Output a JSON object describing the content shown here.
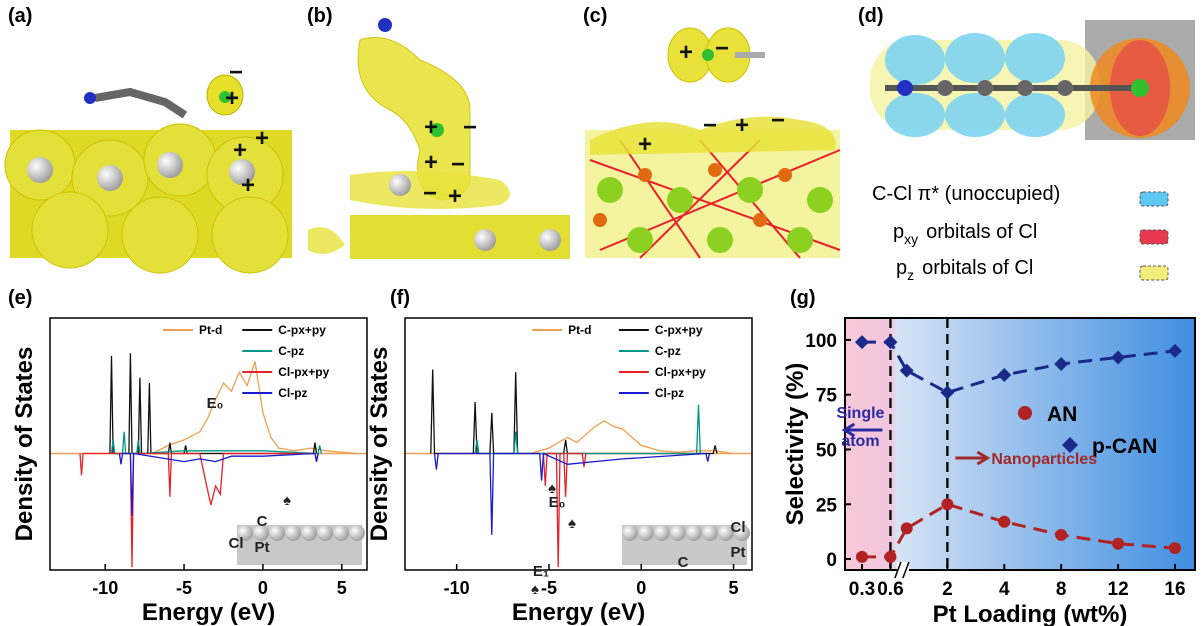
{
  "panels": {
    "a": {
      "label": "(a)",
      "signs": [
        "−",
        "+",
        "+",
        "+",
        "+"
      ]
    },
    "b": {
      "label": "(b)",
      "signs": [
        "+",
        "−",
        "+",
        "−",
        "−",
        "+"
      ]
    },
    "c": {
      "label": "(c)",
      "signs": [
        "+",
        "−",
        "+",
        "−",
        "+",
        "−"
      ]
    },
    "d": {
      "label": "(d)",
      "legend": [
        {
          "text": "C-Cl π* (unoccupied)",
          "color": "#5fc8f0"
        },
        {
          "main": "p",
          "sub": "xy",
          "rest": "orbitals  of Cl",
          "color": "#e8384f"
        },
        {
          "main": "p",
          "sub": "z",
          "rest": "orbitals  of Cl",
          "color": "#f2ec7a"
        }
      ]
    }
  },
  "chart_data": [
    {
      "type": "dos",
      "label": "(e)",
      "xlabel": "Energy (eV)",
      "ylabel": "Density of States",
      "xlim": [
        -13.5,
        6.6
      ],
      "ylim": [
        -4.3,
        5
      ],
      "xticks": [
        -10,
        -5,
        0,
        5
      ],
      "series": [
        {
          "name": "Pt-d",
          "color": "#f0a050",
          "x": [
            -7,
            -6,
            -5,
            -4,
            -3.5,
            -3,
            -2.5,
            -2,
            -1.5,
            -1,
            -0.5,
            0,
            0.5,
            1,
            2,
            3,
            4,
            5,
            6
          ],
          "values": [
            0,
            0.3,
            0.5,
            0.8,
            1.3,
            2.0,
            2.6,
            2.3,
            3.0,
            2.5,
            3.4,
            1.5,
            0.6,
            0.2,
            0.1,
            0.2,
            0.1,
            0.05,
            0
          ]
        },
        {
          "name": "C-px+py",
          "color": "#111111",
          "x": [
            -9.7,
            -9.6,
            -9.5,
            -8.5,
            -8.4,
            -8.3,
            -7.9,
            -7.8,
            -7.7,
            -7.3,
            -7.2,
            -7.1,
            -6,
            -5.9,
            -5.8,
            -5,
            -4.9,
            -4.8,
            3.2,
            3.3,
            3.4
          ],
          "values": [
            0,
            3.6,
            0,
            0,
            3.7,
            0,
            0,
            2.8,
            0,
            0,
            2.6,
            0,
            0,
            0.4,
            0,
            0,
            0.3,
            0,
            0,
            0.4,
            0
          ]
        },
        {
          "name": "C-pz",
          "color": "#009688",
          "x": [
            -9.6,
            -9.5,
            -9.4,
            -8.9,
            -8.8,
            -8.7,
            -8,
            -7.9,
            -7.8,
            -5,
            -3,
            0,
            3.5,
            3.6,
            3.7
          ],
          "values": [
            0,
            0.5,
            0,
            0,
            0.8,
            0,
            0,
            0.5,
            0,
            0.1,
            0.1,
            0.1,
            0,
            0.3,
            0
          ]
        },
        {
          "name": "Cl-px+py",
          "color": "#e8202a",
          "x": [
            -11.6,
            -11.5,
            -11.4,
            -8.4,
            -8.3,
            -8.2,
            -6,
            -5.9,
            -5.8,
            -4,
            -3.6,
            -3.3,
            -3,
            -2.7,
            -2.5,
            3.3,
            3.4,
            3.5
          ],
          "values": [
            0,
            -0.8,
            0,
            0,
            -4.2,
            0,
            0,
            -1.6,
            0,
            0,
            -1.1,
            -1.9,
            -1.2,
            -1.5,
            0,
            0,
            -0.3,
            0
          ]
        },
        {
          "name": "Cl-pz",
          "color": "#1a1ad0",
          "x": [
            -9.1,
            -9,
            -8.9,
            -8.4,
            -8.3,
            -8.2,
            -5,
            -4,
            -3,
            -2,
            0,
            3.3,
            3.4,
            3.5
          ],
          "values": [
            0,
            -0.4,
            0,
            0,
            -2.3,
            0,
            -0.3,
            -0.2,
            -0.3,
            -0.1,
            -0.1,
            0,
            -0.3,
            0
          ]
        }
      ],
      "annotations": [
        "E₀",
        "♠",
        "C",
        "Cl",
        "Pt"
      ]
    },
    {
      "type": "dos",
      "label": "(f)",
      "xlabel": "Energy (eV)",
      "ylabel": "Density of States",
      "xlim": [
        -12.8,
        6
      ],
      "ylim": [
        -4.3,
        5
      ],
      "xticks": [
        -10,
        -5,
        0,
        5
      ],
      "series": [
        {
          "name": "Pt-d",
          "color": "#f0a050",
          "x": [
            -6,
            -5,
            -4.5,
            -4,
            -3.5,
            -3,
            -2.5,
            -2,
            -1.5,
            -1,
            -0.5,
            0,
            1,
            2,
            3,
            4,
            5
          ],
          "values": [
            0,
            0.2,
            0.4,
            0.6,
            0.4,
            0.7,
            1.0,
            1.2,
            1.0,
            0.9,
            0.6,
            0.3,
            0.1,
            0.05,
            0.1,
            0.1,
            0
          ]
        },
        {
          "name": "C-px+py",
          "color": "#111111",
          "x": [
            -11.4,
            -11.3,
            -11.2,
            -9.1,
            -9,
            -8.9,
            -8.2,
            -8.1,
            -8,
            -6.9,
            -6.8,
            -6.7,
            -4.2,
            -4.1,
            -4,
            3.9,
            4,
            4.1
          ],
          "values": [
            0,
            3.1,
            0,
            0,
            1.9,
            0,
            0,
            1.5,
            0,
            0,
            3.0,
            0,
            0,
            0.5,
            0,
            0,
            0.3,
            0
          ]
        },
        {
          "name": "C-pz",
          "color": "#009688",
          "x": [
            -9,
            -8.9,
            -8.8,
            -6.9,
            -6.8,
            -6.7,
            3,
            3.1,
            3.2
          ],
          "values": [
            0,
            0.5,
            0,
            0,
            0.8,
            0,
            0,
            1.8,
            0
          ]
        },
        {
          "name": "Cl-px+py",
          "color": "#e8202a",
          "x": [
            -5.3,
            -5.2,
            -5.1,
            -4.6,
            -4.5,
            -4.4,
            -4.2,
            -4.1,
            -4,
            -3.2,
            -3.1,
            -3
          ],
          "values": [
            0,
            -1.2,
            0,
            0,
            -4.2,
            0,
            0,
            -1.6,
            0,
            0,
            -0.5,
            0
          ]
        },
        {
          "name": "Cl-pz",
          "color": "#1a1ad0",
          "x": [
            -11.2,
            -11.1,
            -11,
            -8.2,
            -8.1,
            -8,
            -5.5,
            -5.4,
            -5.3,
            -4,
            -1,
            3.5,
            3.6,
            3.7
          ],
          "values": [
            0,
            -0.6,
            0,
            0,
            -3.0,
            0,
            0,
            -1.0,
            0,
            -0.4,
            -0.2,
            0,
            -0.3,
            0
          ]
        }
      ],
      "annotations": [
        "E₀",
        "E₁",
        "♠",
        "♠",
        "♠",
        "Cl",
        "C",
        "Pt"
      ]
    },
    {
      "type": "scatter",
      "label": "(g)",
      "xlabel": "Pt Loading (wt%)",
      "ylabel": "Selectivity (%)",
      "x_scale": "broken",
      "ylim": [
        -5,
        110
      ],
      "yticks": [
        0,
        25,
        50,
        75,
        100
      ],
      "xticks": [
        0.3,
        0.6,
        2,
        4,
        8,
        12,
        16
      ],
      "x": [
        0.3,
        0.6,
        1,
        2,
        4,
        8,
        12,
        16
      ],
      "series": [
        {
          "name": "AN",
          "color": "#b22222",
          "marker": "circle",
          "values": [
            1,
            1,
            14,
            25,
            17,
            11,
            7,
            5
          ]
        },
        {
          "name": "p-CAN",
          "color": "#1a2a8a",
          "marker": "diamond",
          "values": [
            99,
            99,
            86,
            76,
            84,
            89,
            92,
            95
          ]
        }
      ],
      "vlines": [
        0.6,
        2
      ],
      "legend": "right",
      "annotations": [
        "Single",
        "atom",
        "Nanoparticles"
      ]
    }
  ]
}
